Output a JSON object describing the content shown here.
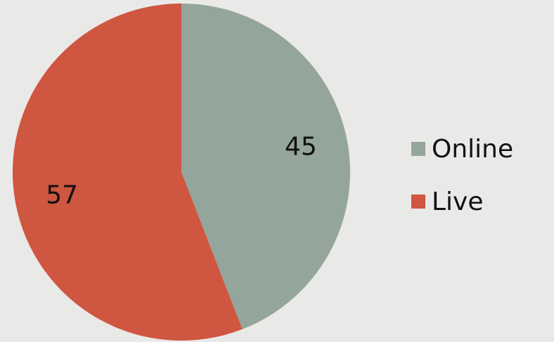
{
  "chart_data": {
    "type": "pie",
    "categories": [
      "Online",
      "Live"
    ],
    "values": [
      45,
      57
    ],
    "colors": [
      "#94a59b",
      "#cf5640"
    ]
  }
}
